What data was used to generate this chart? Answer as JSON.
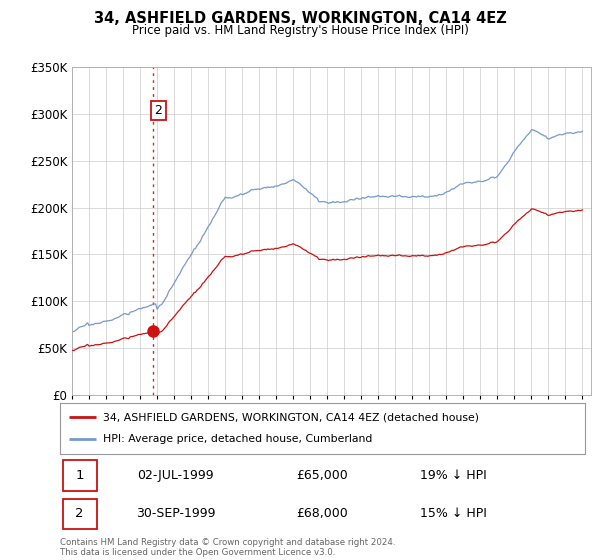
{
  "title": "34, ASHFIELD GARDENS, WORKINGTON, CA14 4EZ",
  "subtitle": "Price paid vs. HM Land Registry's House Price Index (HPI)",
  "ylim": [
    0,
    350000
  ],
  "xlim_start": 1995.0,
  "xlim_end": 2025.5,
  "hpi_color": "#7799cc",
  "price_color": "#cc1111",
  "sale1_date_label": "02-JUL-1999",
  "sale1_price": 65000,
  "sale1_pct": "19%",
  "sale2_date_label": "30-SEP-1999",
  "sale2_price": 68000,
  "sale2_pct": "15%",
  "sale1_x": 1999.5,
  "sale2_x": 1999.75,
  "legend_label1": "34, ASHFIELD GARDENS, WORKINGTON, CA14 4EZ (detached house)",
  "legend_label2": "HPI: Average price, detached house, Cumberland",
  "footnote": "Contains HM Land Registry data © Crown copyright and database right 2024.\nThis data is licensed under the Open Government Licence v3.0.",
  "background_color": "#ffffff",
  "grid_color": "#cccccc"
}
